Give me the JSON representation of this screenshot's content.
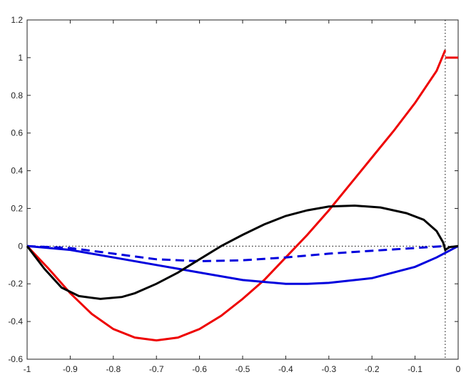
{
  "chart_data": {
    "type": "line",
    "xlim": [
      -1,
      0
    ],
    "ylim": [
      -0.6,
      1.2
    ],
    "xticks": [
      -1,
      -0.9,
      -0.8,
      -0.7,
      -0.6,
      -0.5,
      -0.4,
      -0.3,
      -0.2,
      -0.1,
      0
    ],
    "yticks": [
      -0.6,
      -0.4,
      -0.2,
      0,
      0.2,
      0.4,
      0.6,
      0.8,
      1,
      1.2
    ],
    "grid": false,
    "hlines": [
      0
    ],
    "vlines": [
      -0.03
    ],
    "series": [
      {
        "color": "#ee0000",
        "line_style": "solid",
        "x": [
          -1,
          -0.95,
          -0.9,
          -0.85,
          -0.8,
          -0.75,
          -0.7,
          -0.65,
          -0.6,
          -0.55,
          -0.5,
          -0.45,
          -0.4,
          -0.35,
          -0.3,
          -0.25,
          -0.2,
          -0.15,
          -0.1,
          -0.05,
          -0.03,
          -0.02,
          -0.03,
          0
        ],
        "values": [
          0,
          -0.12,
          -0.25,
          -0.36,
          -0.44,
          -0.485,
          -0.5,
          -0.485,
          -0.44,
          -0.37,
          -0.28,
          -0.18,
          -0.06,
          0.06,
          0.19,
          0.33,
          0.47,
          0.61,
          0.76,
          0.93,
          1.04,
          null,
          1,
          1
        ]
      },
      {
        "color": "#0000dd",
        "line_style": "solid",
        "x": [
          -1,
          -0.9,
          -0.8,
          -0.7,
          -0.6,
          -0.5,
          -0.4,
          -0.35,
          -0.3,
          -0.2,
          -0.1,
          -0.05,
          0
        ],
        "values": [
          0,
          -0.02,
          -0.06,
          -0.1,
          -0.14,
          -0.18,
          -0.2,
          -0.2,
          -0.195,
          -0.17,
          -0.11,
          -0.06,
          0
        ]
      },
      {
        "color": "#0000dd",
        "line_style": "dashed",
        "x": [
          -1,
          -0.9,
          -0.8,
          -0.7,
          -0.6,
          -0.5,
          -0.4,
          -0.3,
          -0.2,
          -0.1,
          -0.03
        ],
        "values": [
          0,
          -0.01,
          -0.04,
          -0.07,
          -0.08,
          -0.075,
          -0.06,
          -0.04,
          -0.025,
          -0.01,
          0
        ]
      },
      {
        "color": "#000000",
        "line_style": "solid",
        "x": [
          -1,
          -0.96,
          -0.92,
          -0.88,
          -0.83,
          -0.78,
          -0.75,
          -0.7,
          -0.65,
          -0.6,
          -0.55,
          -0.5,
          -0.45,
          -0.4,
          -0.35,
          -0.3,
          -0.24,
          -0.18,
          -0.12,
          -0.08,
          -0.05,
          -0.035,
          -0.03,
          -0.02,
          0
        ],
        "values": [
          0,
          -0.12,
          -0.22,
          -0.265,
          -0.28,
          -0.27,
          -0.25,
          -0.2,
          -0.14,
          -0.07,
          0,
          0.06,
          0.115,
          0.16,
          0.19,
          0.21,
          0.215,
          0.205,
          0.175,
          0.14,
          0.08,
          0.02,
          -0.02,
          -0.005,
          0
        ]
      }
    ]
  }
}
